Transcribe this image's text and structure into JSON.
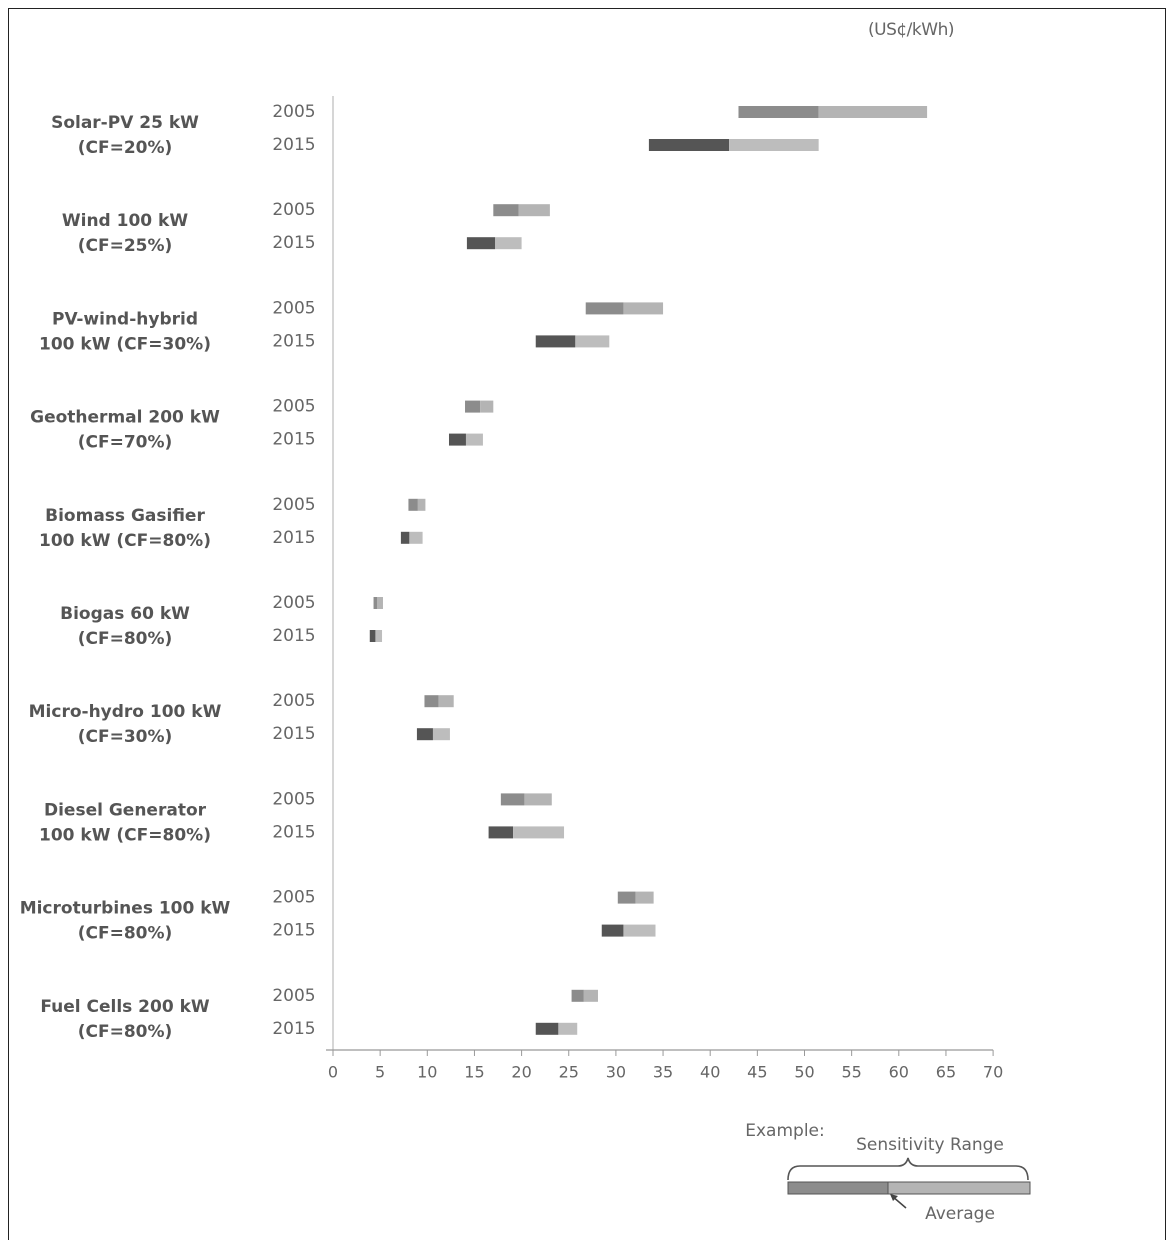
{
  "unit_label": "(US¢/kWh)",
  "chart_data": {
    "type": "bar",
    "subtype": "floating-range",
    "x_ticks": [
      0,
      5,
      10,
      15,
      20,
      25,
      30,
      35,
      40,
      45,
      50,
      55,
      60,
      65,
      70
    ],
    "xlim": [
      0,
      70
    ],
    "grid": false,
    "colors": {
      "low_to_avg_2005": "#8c8c8c",
      "avg_to_high_2005": "#b4b4b4",
      "low_to_avg_2015": "#555555",
      "avg_to_high_2015": "#bdbdbd"
    },
    "technologies": [
      {
        "line1": "Solar-PV 25 kW",
        "line2": "(CF=20%)",
        "bars": [
          {
            "year": "2005",
            "low": 43,
            "avg": 51.5,
            "high": 63
          },
          {
            "year": "2015",
            "low": 33.5,
            "avg": 42,
            "high": 51.5
          }
        ]
      },
      {
        "line1": "Wind 100 kW",
        "line2": "(CF=25%)",
        "bars": [
          {
            "year": "2005",
            "low": 17,
            "avg": 19.7,
            "high": 23
          },
          {
            "year": "2015",
            "low": 14.2,
            "avg": 17.2,
            "high": 20
          }
        ]
      },
      {
        "line1": "PV-wind-hybrid",
        "line2": "100 kW (CF=30%)",
        "bars": [
          {
            "year": "2005",
            "low": 26.8,
            "avg": 30.8,
            "high": 35
          },
          {
            "year": "2015",
            "low": 21.5,
            "avg": 25.7,
            "high": 29.3
          }
        ]
      },
      {
        "line1": "Geothermal 200 kW",
        "line2": "(CF=70%)",
        "bars": [
          {
            "year": "2005",
            "low": 14,
            "avg": 15.6,
            "high": 17
          }
        ],
        "bars_2015": []
      },
      {
        "line1": "Biomass Gasifier",
        "line2": "100 kW (CF=80%)",
        "bars": [
          {
            "year": "2005",
            "low": 8,
            "avg": 9,
            "high": 9.8
          },
          {
            "year": "2015",
            "low": 7.2,
            "avg": 8.1,
            "high": 9.5
          }
        ]
      },
      {
        "line1": "Biogas 60 kW",
        "line2": "(CF=80%)",
        "bars": [
          {
            "year": "2005",
            "low": 4.3,
            "avg": 4.7,
            "high": 5.3
          },
          {
            "year": "2015",
            "low": 3.9,
            "avg": 4.5,
            "high": 5.2
          }
        ]
      },
      {
        "line1": "Micro-hydro 100 kW",
        "line2": "(CF=30%)",
        "bars": [
          {
            "year": "2005",
            "low": 9.7,
            "avg": 11.2,
            "high": 12.8
          },
          {
            "year": "2015",
            "low": 8.9,
            "avg": 10.6,
            "high": 12.4
          }
        ]
      },
      {
        "line1": "Diesel Generator",
        "line2": "100 kW (CF=80%)",
        "bars": [
          {
            "year": "2005",
            "low": 17.8,
            "avg": 20.3,
            "high": 23.2
          },
          {
            "year": "2015",
            "low": 16.5,
            "avg": 19.1,
            "high": 24.5
          }
        ]
      },
      {
        "line1": "Microturbines 100 kW",
        "line2": "(CF=80%)",
        "bars": [
          {
            "year": "2005",
            "low": 30.2,
            "avg": 32.1,
            "high": 34
          },
          {
            "year": "2015",
            "low": 28.5,
            "avg": 30.8,
            "high": 34.2
          }
        ]
      },
      {
        "line1": "Fuel Cells 200 kW",
        "line2": "(CF=80%)",
        "bars": [
          {
            "year": "2005",
            "low": 25.3,
            "avg": 26.6,
            "high": 28.1
          },
          {
            "year": "2015",
            "low": 21.5,
            "avg": 23.9,
            "high": 25.9
          }
        ]
      }
    ],
    "legend": {
      "example_label": "Example:",
      "range_label": "Sensitivity Range",
      "average_label": "Average"
    }
  }
}
